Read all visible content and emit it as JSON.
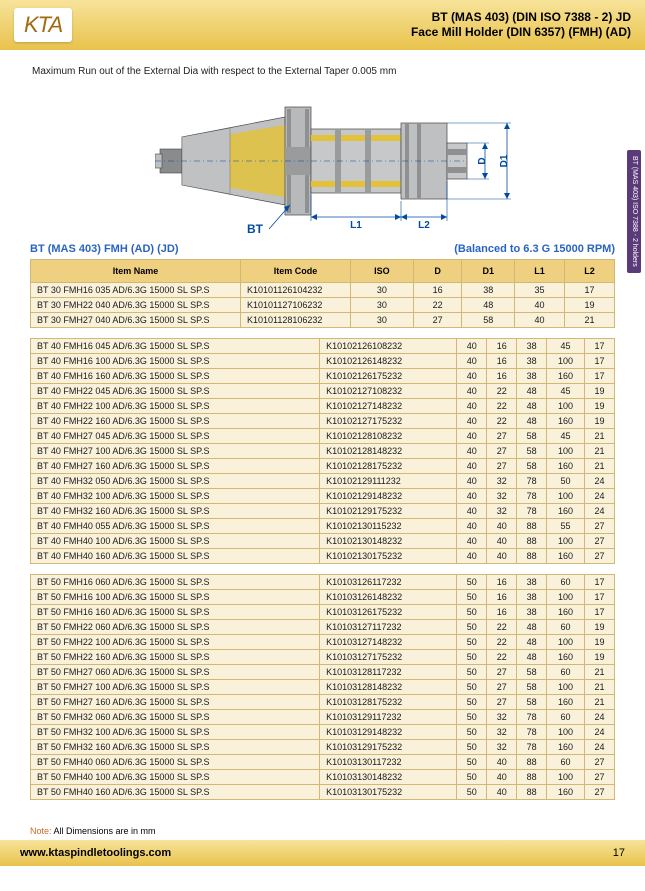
{
  "header": {
    "logo": "KTA",
    "title_line1": "BT (MAS 403) (DIN ISO 7388 - 2) JD",
    "title_line2": "Face Mill Holder (DIN 6357) (FMH) (AD)"
  },
  "runout_text": "Maximum Run out of the External Dia with respect to the External Taper 0.005 mm",
  "side_tab": "BT (MAS 403) ISO 7388 - 2 holders",
  "diagram": {
    "bt_label": "BT",
    "d_label": "D",
    "d1_label": "D1",
    "l1_label": "L1",
    "l2_label": "L2",
    "body_color": "#b8b9bb",
    "stripe_color": "#e2c23b",
    "line_color": "#004b9e"
  },
  "titles": {
    "left": "BT (MAS 403) FMH (AD) (JD)",
    "right": "(Balanced to 6.3 G 15000 RPM)"
  },
  "columns": [
    "Item Name",
    "Item Code",
    "ISO",
    "D",
    "D1",
    "L1",
    "L2"
  ],
  "table1": [
    [
      "BT 30 FMH16 035 AD/6.3G 15000 SL SP.S",
      "K10101126104232",
      "30",
      "16",
      "38",
      "35",
      "17"
    ],
    [
      "BT 30 FMH22 040 AD/6.3G 15000 SL SP.S",
      "K10101127106232",
      "30",
      "22",
      "48",
      "40",
      "19"
    ],
    [
      "BT 30 FMH27 040 AD/6.3G 15000 SL SP.S",
      "K10101128106232",
      "30",
      "27",
      "58",
      "40",
      "21"
    ]
  ],
  "table2": [
    [
      "BT 40 FMH16 045 AD/6.3G 15000 SL SP.S",
      "K10102126108232",
      "40",
      "16",
      "38",
      "45",
      "17"
    ],
    [
      "BT 40 FMH16 100 AD/6.3G 15000 SL SP.S",
      "K10102126148232",
      "40",
      "16",
      "38",
      "100",
      "17"
    ],
    [
      "BT 40 FMH16 160 AD/6.3G 15000 SL SP.S",
      "K10102126175232",
      "40",
      "16",
      "38",
      "160",
      "17"
    ],
    [
      "BT 40 FMH22 045 AD/6.3G 15000 SL SP.S",
      "K10102127108232",
      "40",
      "22",
      "48",
      "45",
      "19"
    ],
    [
      "BT 40 FMH22 100 AD/6.3G 15000 SL SP.S",
      "K10102127148232",
      "40",
      "22",
      "48",
      "100",
      "19"
    ],
    [
      "BT 40 FMH22 160 AD/6.3G 15000 SL SP.S",
      "K10102127175232",
      "40",
      "22",
      "48",
      "160",
      "19"
    ],
    [
      "BT 40 FMH27 045 AD/6.3G 15000 SL SP.S",
      "K10102128108232",
      "40",
      "27",
      "58",
      "45",
      "21"
    ],
    [
      "BT 40 FMH27 100 AD/6.3G 15000 SL SP.S",
      "K10102128148232",
      "40",
      "27",
      "58",
      "100",
      "21"
    ],
    [
      "BT 40 FMH27 160 AD/6.3G 15000 SL SP.S",
      "K10102128175232",
      "40",
      "27",
      "58",
      "160",
      "21"
    ],
    [
      "BT 40 FMH32 050 AD/6.3G 15000 SL SP.S",
      "K10102129111232",
      "40",
      "32",
      "78",
      "50",
      "24"
    ],
    [
      "BT 40 FMH32 100 AD/6.3G 15000 SL SP.S",
      "K10102129148232",
      "40",
      "32",
      "78",
      "100",
      "24"
    ],
    [
      "BT 40 FMH32 160 AD/6.3G 15000 SL SP.S",
      "K10102129175232",
      "40",
      "32",
      "78",
      "160",
      "24"
    ],
    [
      "BT 40 FMH40 055 AD/6.3G 15000 SL SP.S",
      "K10102130115232",
      "40",
      "40",
      "88",
      "55",
      "27"
    ],
    [
      "BT 40 FMH40 100 AD/6.3G 15000 SL SP.S",
      "K10102130148232",
      "40",
      "40",
      "88",
      "100",
      "27"
    ],
    [
      "BT 40 FMH40 160 AD/6.3G 15000 SL SP.S",
      "K10102130175232",
      "40",
      "40",
      "88",
      "160",
      "27"
    ]
  ],
  "table3": [
    [
      "BT 50 FMH16 060 AD/6.3G 15000 SL SP.S",
      "K10103126117232",
      "50",
      "16",
      "38",
      "60",
      "17"
    ],
    [
      "BT 50 FMH16 100 AD/6.3G 15000 SL SP.S",
      "K10103126148232",
      "50",
      "16",
      "38",
      "100",
      "17"
    ],
    [
      "BT 50 FMH16 160 AD/6.3G 15000 SL SP.S",
      "K10103126175232",
      "50",
      "16",
      "38",
      "160",
      "17"
    ],
    [
      "BT 50 FMH22 060 AD/6.3G 15000 SL SP.S",
      "K10103127117232",
      "50",
      "22",
      "48",
      "60",
      "19"
    ],
    [
      "BT 50 FMH22 100 AD/6.3G 15000 SL SP.S",
      "K10103127148232",
      "50",
      "22",
      "48",
      "100",
      "19"
    ],
    [
      "BT 50 FMH22 160 AD/6.3G 15000 SL SP.S",
      "K10103127175232",
      "50",
      "22",
      "48",
      "160",
      "19"
    ],
    [
      "BT 50 FMH27 060 AD/6.3G 15000 SL SP.S",
      "K10103128117232",
      "50",
      "27",
      "58",
      "60",
      "21"
    ],
    [
      "BT 50 FMH27 100 AD/6.3G 15000 SL SP.S",
      "K10103128148232",
      "50",
      "27",
      "58",
      "100",
      "21"
    ],
    [
      "BT 50 FMH27 160 AD/6.3G 15000 SL SP.S",
      "K10103128175232",
      "50",
      "27",
      "58",
      "160",
      "21"
    ],
    [
      "BT 50 FMH32 060 AD/6.3G 15000 SL SP.S",
      "K10103129117232",
      "50",
      "32",
      "78",
      "60",
      "24"
    ],
    [
      "BT 50 FMH32 100 AD/6.3G 15000 SL SP.S",
      "K10103129148232",
      "50",
      "32",
      "78",
      "100",
      "24"
    ],
    [
      "BT 50 FMH32 160 AD/6.3G 15000 SL SP.S",
      "K10103129175232",
      "50",
      "32",
      "78",
      "160",
      "24"
    ],
    [
      "BT 50 FMH40 060 AD/6.3G 15000 SL SP.S",
      "K10103130117232",
      "50",
      "40",
      "88",
      "60",
      "27"
    ],
    [
      "BT 50 FMH40 100 AD/6.3G 15000 SL SP.S",
      "K10103130148232",
      "50",
      "40",
      "88",
      "100",
      "27"
    ],
    [
      "BT 50 FMH40 160 AD/6.3G 15000 SL SP.S",
      "K10103130175232",
      "50",
      "40",
      "88",
      "160",
      "27"
    ]
  ],
  "note_label": "Note:",
  "note_text": " All Dimensions are in mm",
  "footer": {
    "url": "www.ktaspindletoolings.com",
    "page": "17"
  }
}
